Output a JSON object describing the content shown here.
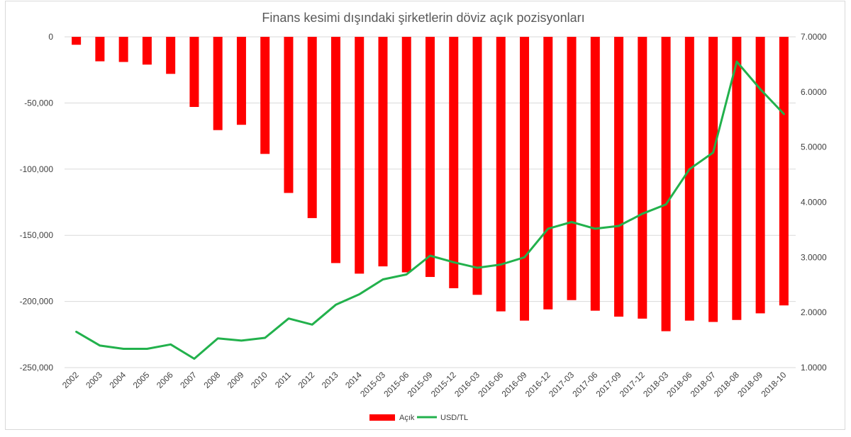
{
  "chart_data": {
    "type": "bar",
    "title": "Finans kesimi dışındaki şirketlerin döviz açık pozisyonları",
    "categories": [
      "2002",
      "2003",
      "2004",
      "2005",
      "2006",
      "2007",
      "2008",
      "2009",
      "2010",
      "2011",
      "2012",
      "2013",
      "2014",
      "2015-03",
      "2015-06",
      "2015-09",
      "2015-12",
      "2016-03",
      "2016-06",
      "2016-09",
      "2016-12",
      "2017-03",
      "2017-06",
      "2017-09",
      "2017-12",
      "2018-03",
      "2018-06",
      "2018-07",
      "2018-08",
      "2018-09",
      "2018-10"
    ],
    "series": [
      {
        "name": "Açık",
        "type": "bar",
        "axis": "left",
        "color": "#ff0000",
        "values": [
          -6000,
          -18500,
          -19000,
          -21000,
          -28000,
          -53000,
          -70500,
          -66500,
          -88500,
          -118000,
          -137000,
          -171000,
          -179000,
          -173500,
          -178000,
          -181500,
          -190000,
          -195000,
          -207500,
          -214500,
          -206000,
          -199000,
          -207000,
          -211500,
          -213000,
          -222500,
          -214500,
          -215500,
          -214000,
          -209000,
          -203000
        ]
      },
      {
        "name": "USD/TL",
        "type": "line",
        "axis": "right",
        "color": "#22b14c",
        "values": [
          1.65,
          1.4,
          1.34,
          1.34,
          1.42,
          1.16,
          1.53,
          1.49,
          1.54,
          1.89,
          1.78,
          2.14,
          2.33,
          2.6,
          2.69,
          3.03,
          2.91,
          2.81,
          2.87,
          3.0,
          3.52,
          3.64,
          3.52,
          3.57,
          3.79,
          3.96,
          4.6,
          4.9,
          6.55,
          6.05,
          5.6
        ]
      }
    ],
    "y_left": {
      "min": -250000,
      "max": 0,
      "ticks": [
        0,
        -50000,
        -100000,
        -150000,
        -200000,
        -250000
      ],
      "tick_labels": [
        "0",
        "-50,000",
        "-100,000",
        "-150,000",
        "-200,000",
        "-250,000"
      ]
    },
    "y_right": {
      "min": 1.0,
      "max": 7.0,
      "ticks": [
        7,
        6,
        5,
        4,
        3,
        2,
        1
      ],
      "tick_labels": [
        "7.0000",
        "6.0000",
        "5.0000",
        "4.0000",
        "3.0000",
        "2.0000",
        "1.0000"
      ]
    },
    "grid": true,
    "legend_position": "bottom",
    "legend": [
      {
        "label": "Açık",
        "color": "#ff0000",
        "shape": "bar"
      },
      {
        "label": "USD/TL",
        "color": "#22b14c",
        "shape": "line"
      }
    ]
  }
}
